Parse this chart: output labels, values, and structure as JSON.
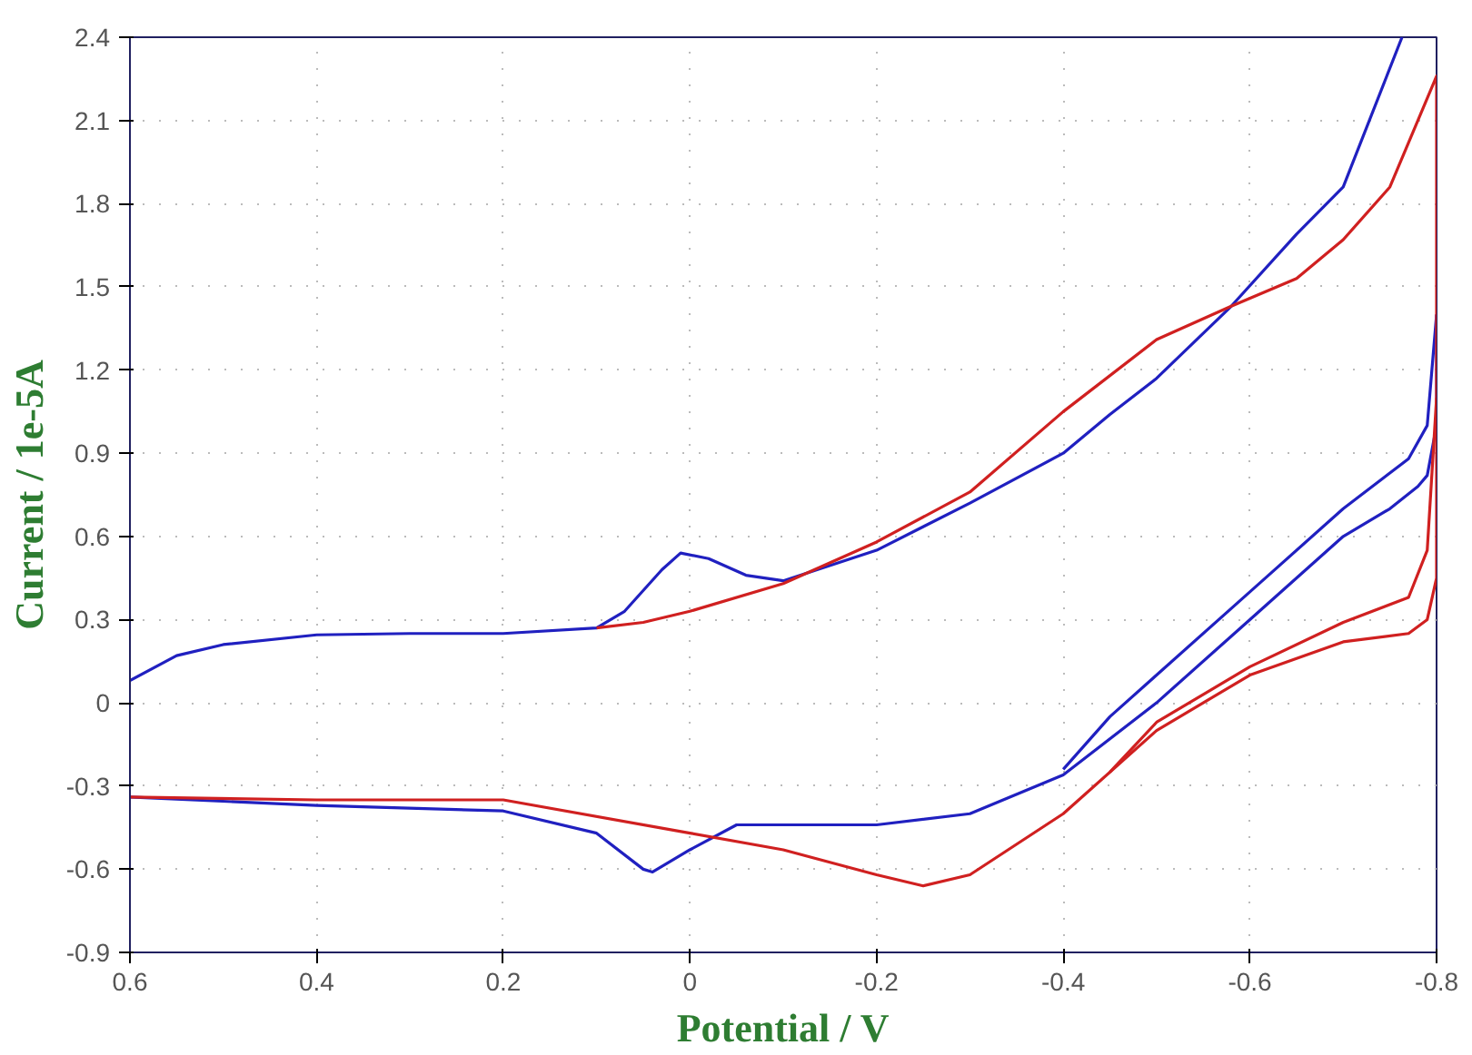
{
  "chart_data": {
    "type": "line",
    "xlabel": "Potential / V",
    "ylabel": "Current / 1e-5A",
    "xlim": [
      0.6,
      -0.8
    ],
    "ylim": [
      -0.9,
      2.4
    ],
    "xticks": [
      0.6,
      0.4,
      0.2,
      0,
      -0.2,
      -0.4,
      -0.6,
      -0.8
    ],
    "yticks": [
      -0.9,
      -0.6,
      -0.3,
      0,
      0.3,
      0.6,
      0.9,
      1.2,
      1.5,
      1.8,
      2.1,
      2.4
    ],
    "grid": true,
    "line_style": "solid",
    "marker": "none",
    "series": [
      {
        "color": "#2020c0",
        "x": [
          0.6,
          0.55,
          0.5,
          0.4,
          0.3,
          0.2,
          0.1,
          0.07,
          0.03,
          0.01,
          -0.02,
          -0.06,
          -0.1,
          -0.2,
          -0.3,
          -0.4,
          -0.45,
          -0.5,
          -0.58,
          -0.65,
          -0.7,
          -0.763
        ],
        "values": [
          0.08,
          0.17,
          0.21,
          0.245,
          0.25,
          0.25,
          0.27,
          0.33,
          0.48,
          0.54,
          0.52,
          0.46,
          0.44,
          0.55,
          0.72,
          0.9,
          1.04,
          1.17,
          1.43,
          1.69,
          1.86,
          2.4
        ]
      },
      {
        "color": "#2020c0",
        "x": [
          -0.8,
          -0.8,
          -0.79,
          -0.78,
          -0.75,
          -0.7,
          -0.6,
          -0.5,
          -0.4,
          -0.3,
          -0.2,
          -0.1,
          -0.05,
          0,
          0.04,
          0.05,
          0.1,
          0.2,
          0.4,
          0.6
        ],
        "values": [
          1.4,
          1.0,
          0.82,
          0.78,
          0.7,
          0.6,
          0.3,
          0.0,
          -0.26,
          -0.4,
          -0.44,
          -0.44,
          -0.44,
          -0.53,
          -0.61,
          -0.6,
          -0.47,
          -0.39,
          -0.37,
          -0.34
        ]
      },
      {
        "color": "#2020c0",
        "x": [
          -0.8,
          -0.79,
          -0.77,
          -0.7,
          -0.6,
          -0.5,
          -0.45,
          -0.4
        ],
        "values": [
          1.4,
          1.0,
          0.88,
          0.7,
          0.4,
          0.1,
          -0.05,
          -0.24
        ]
      },
      {
        "color": "#d02020",
        "x": [
          0.1,
          0.05,
          0,
          -0.1,
          -0.2,
          -0.3,
          -0.4,
          -0.5,
          -0.58,
          -0.65,
          -0.7,
          -0.75,
          -0.8,
          -0.8,
          -0.79,
          -0.77,
          -0.7,
          -0.6,
          -0.5,
          -0.4,
          -0.3,
          -0.25,
          -0.2,
          -0.1,
          0,
          0.2,
          0.4,
          0.6
        ],
        "values": [
          0.27,
          0.29,
          0.33,
          0.43,
          0.58,
          0.76,
          1.05,
          1.31,
          1.43,
          1.53,
          1.67,
          1.86,
          2.26,
          0.45,
          0.3,
          0.25,
          0.22,
          0.1,
          -0.1,
          -0.4,
          -0.62,
          -0.66,
          -0.62,
          -0.53,
          -0.47,
          -0.35,
          -0.35,
          -0.34
        ]
      },
      {
        "color": "#d02020",
        "x": [
          -0.8,
          -0.79,
          -0.77,
          -0.7,
          -0.6,
          -0.5,
          -0.45
        ],
        "values": [
          1.1,
          0.55,
          0.38,
          0.29,
          0.13,
          -0.07,
          -0.25
        ]
      }
    ]
  }
}
